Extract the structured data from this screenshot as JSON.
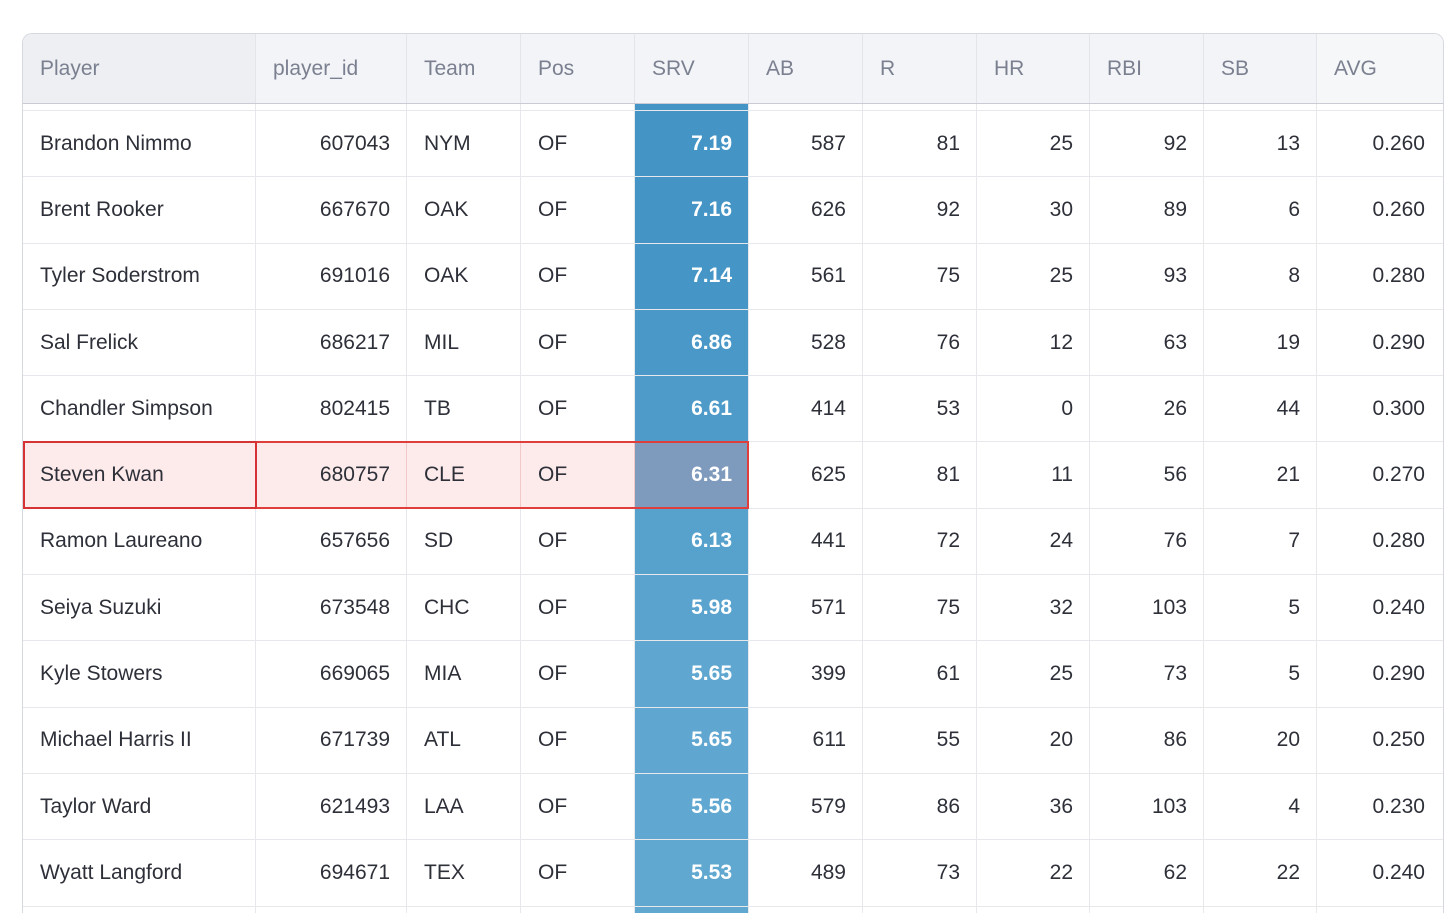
{
  "table": {
    "columns": [
      {
        "key": "player",
        "label": "Player",
        "align": "left"
      },
      {
        "key": "player_id",
        "label": "player_id",
        "align": "right"
      },
      {
        "key": "team",
        "label": "Team",
        "align": "left"
      },
      {
        "key": "pos",
        "label": "Pos",
        "align": "left"
      },
      {
        "key": "srv",
        "label": "SRV",
        "align": "right"
      },
      {
        "key": "ab",
        "label": "AB",
        "align": "right"
      },
      {
        "key": "r",
        "label": "R",
        "align": "right"
      },
      {
        "key": "hr",
        "label": "HR",
        "align": "right"
      },
      {
        "key": "rbi",
        "label": "RBI",
        "align": "right"
      },
      {
        "key": "sb",
        "label": "SB",
        "align": "right"
      },
      {
        "key": "avg",
        "label": "AVG",
        "align": "right"
      }
    ],
    "rows": [
      {
        "player": "Brandon Nimmo",
        "player_id": "607043",
        "team": "NYM",
        "pos": "OF",
        "srv": "7.19",
        "ab": "587",
        "r": "81",
        "hr": "25",
        "rbi": "92",
        "sb": "13",
        "avg": "0.260"
      },
      {
        "player": "Brent Rooker",
        "player_id": "667670",
        "team": "OAK",
        "pos": "OF",
        "srv": "7.16",
        "ab": "626",
        "r": "92",
        "hr": "30",
        "rbi": "89",
        "sb": "6",
        "avg": "0.260"
      },
      {
        "player": "Tyler Soderstrom",
        "player_id": "691016",
        "team": "OAK",
        "pos": "OF",
        "srv": "7.14",
        "ab": "561",
        "r": "75",
        "hr": "25",
        "rbi": "93",
        "sb": "8",
        "avg": "0.280"
      },
      {
        "player": "Sal Frelick",
        "player_id": "686217",
        "team": "MIL",
        "pos": "OF",
        "srv": "6.86",
        "ab": "528",
        "r": "76",
        "hr": "12",
        "rbi": "63",
        "sb": "19",
        "avg": "0.290"
      },
      {
        "player": "Chandler Simpson",
        "player_id": "802415",
        "team": "TB",
        "pos": "OF",
        "srv": "6.61",
        "ab": "414",
        "r": "53",
        "hr": "0",
        "rbi": "26",
        "sb": "44",
        "avg": "0.300"
      },
      {
        "player": "Steven Kwan",
        "player_id": "680757",
        "team": "CLE",
        "pos": "OF",
        "srv": "6.31",
        "ab": "625",
        "r": "81",
        "hr": "11",
        "rbi": "56",
        "sb": "21",
        "avg": "0.270"
      },
      {
        "player": "Ramon Laureano",
        "player_id": "657656",
        "team": "SD",
        "pos": "OF",
        "srv": "6.13",
        "ab": "441",
        "r": "72",
        "hr": "24",
        "rbi": "76",
        "sb": "7",
        "avg": "0.280"
      },
      {
        "player": "Seiya Suzuki",
        "player_id": "673548",
        "team": "CHC",
        "pos": "OF",
        "srv": "5.98",
        "ab": "571",
        "r": "75",
        "hr": "32",
        "rbi": "103",
        "sb": "5",
        "avg": "0.240"
      },
      {
        "player": "Kyle Stowers",
        "player_id": "669065",
        "team": "MIA",
        "pos": "OF",
        "srv": "5.65",
        "ab": "399",
        "r": "61",
        "hr": "25",
        "rbi": "73",
        "sb": "5",
        "avg": "0.290"
      },
      {
        "player": "Michael Harris II",
        "player_id": "671739",
        "team": "ATL",
        "pos": "OF",
        "srv": "5.65",
        "ab": "611",
        "r": "55",
        "hr": "20",
        "rbi": "86",
        "sb": "20",
        "avg": "0.250"
      },
      {
        "player": "Taylor Ward",
        "player_id": "621493",
        "team": "LAA",
        "pos": "OF",
        "srv": "5.56",
        "ab": "579",
        "r": "86",
        "hr": "36",
        "rbi": "103",
        "sb": "4",
        "avg": "0.230"
      },
      {
        "player": "Wyatt Langford",
        "player_id": "694671",
        "team": "TEX",
        "pos": "OF",
        "srv": "5.53",
        "ab": "489",
        "r": "73",
        "hr": "22",
        "rbi": "62",
        "sb": "22",
        "avg": "0.240"
      }
    ],
    "highlight": {
      "row_player": "Steven Kwan",
      "row_index": 5,
      "highlighted_columns": [
        "player",
        "player_id",
        "team",
        "pos",
        "srv"
      ]
    },
    "colors": {
      "srv_blue_high": "#4494C6",
      "srv_blue_low": "#61A8D1",
      "srv_value_min": "5.53",
      "srv_value_max": "7.19",
      "srv_highlight_bg": "#7E9BBD",
      "highlight_row_bg": "#FDEAEA",
      "highlight_range_border": "#DF3E3C",
      "highlight_cell_border": "#D63434",
      "header_bg": "#F3F4F7",
      "header_text": "#7B8090",
      "cell_text": "#2E3039",
      "grid_border": "#E7E8EC"
    }
  }
}
